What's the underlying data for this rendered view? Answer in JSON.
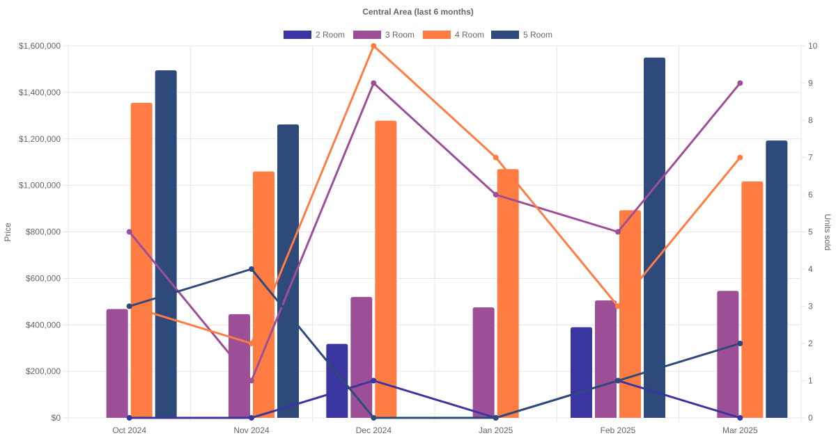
{
  "chart_data": {
    "type": "bar",
    "title": "Central Area (last 6 months)",
    "categories": [
      "Oct 2024",
      "Nov 2024",
      "Dec 2024",
      "Jan 2025",
      "Feb 2025",
      "Mar 2025"
    ],
    "ylabel": "Price",
    "y2label": "Units sold",
    "ylim": [
      0,
      1600000
    ],
    "y2lim": [
      0,
      10
    ],
    "yticks": [
      "$0",
      "$200,000",
      "$400,000",
      "$600,000",
      "$800,000",
      "$1,000,000",
      "$1,200,000",
      "$1,400,000",
      "$1,600,000"
    ],
    "y2ticks": [
      "0",
      "1",
      "2",
      "3",
      "4",
      "5",
      "6",
      "7",
      "8",
      "9",
      "10"
    ],
    "legend_position": "top-center",
    "grid": true,
    "price_series": [
      {
        "name": "2 Room",
        "color": "#3a35a0",
        "values": [
          null,
          null,
          318000,
          null,
          390000,
          null
        ]
      },
      {
        "name": "3 Room",
        "color": "#9c4f96",
        "values": [
          468000,
          446000,
          520000,
          475000,
          505000,
          546000
        ]
      },
      {
        "name": "4 Room",
        "color": "#ff7c43",
        "values": [
          1355000,
          1060000,
          1278000,
          1070000,
          893000,
          1017000
        ]
      },
      {
        "name": "5 Room",
        "color": "#2e4a7a",
        "values": [
          1495000,
          1262000,
          null,
          null,
          1550000,
          1193000
        ]
      }
    ],
    "units_series": [
      {
        "name": "2 Room",
        "color": "#3a35a0",
        "values": [
          0,
          0,
          1,
          0,
          1,
          0
        ]
      },
      {
        "name": "3 Room",
        "color": "#9c4f96",
        "values": [
          5,
          1,
          9,
          6,
          5,
          9
        ]
      },
      {
        "name": "4 Room",
        "color": "#ff7c43",
        "values": [
          3,
          2,
          10,
          7,
          3,
          7
        ]
      },
      {
        "name": "5 Room",
        "color": "#2e4a7a",
        "values": [
          3,
          4,
          0,
          0,
          1,
          2
        ]
      }
    ]
  }
}
